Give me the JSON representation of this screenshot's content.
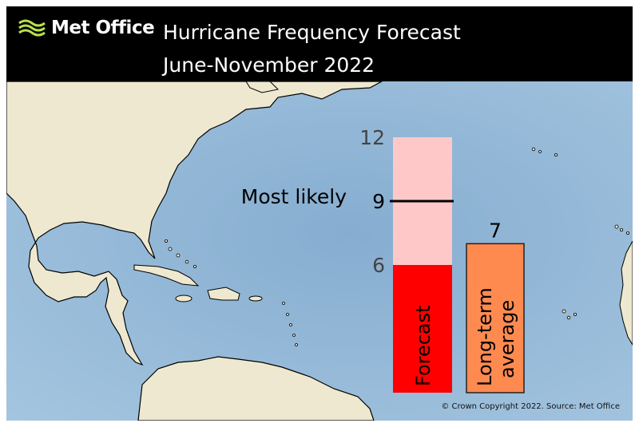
{
  "header": {
    "logo_text": "Met Office",
    "title": "Hurricane Frequency Forecast",
    "subtitle": "June-November 2022"
  },
  "chart_data": {
    "type": "bar",
    "categories": [
      "Forecast",
      "Long-term average"
    ],
    "forecast": {
      "label": "Forecast",
      "range_low": 6,
      "range_high": 12,
      "most_likely": 9
    },
    "average": {
      "label_line1": "Long-term",
      "label_line2": "average",
      "value": 7
    },
    "tick_labels": [
      "6",
      "9",
      "12"
    ],
    "annotation": "Most likely",
    "ylim": [
      0,
      12
    ],
    "colors": {
      "forecast_dark": "#ff0000",
      "forecast_light": "#ffc8c8",
      "average": "#ff8a50"
    }
  },
  "footer": {
    "copyright": "© Crown Copyright 2022. Source: Met Office"
  }
}
